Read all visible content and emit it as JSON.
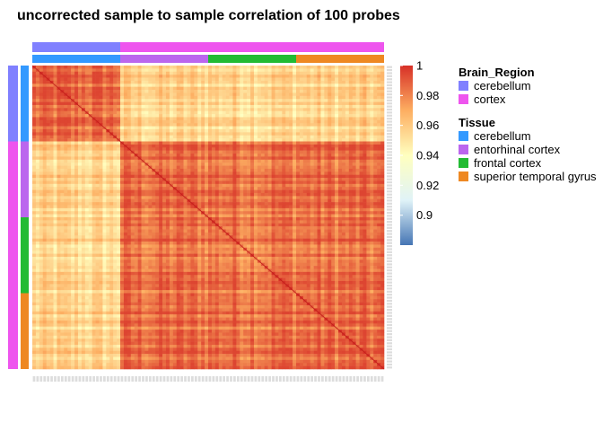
{
  "title": "uncorrected sample to sample correlation of 100 probes",
  "chart_data": {
    "type": "heatmap",
    "title": "uncorrected sample to sample correlation of 100 probes",
    "n_samples": 100,
    "colorbar": {
      "min": 0.88,
      "max": 1.0,
      "ticks": [
        {
          "value": 1.0,
          "label": "1"
        },
        {
          "value": 0.98,
          "label": "0.98"
        },
        {
          "value": 0.96,
          "label": "0.96"
        },
        {
          "value": 0.94,
          "label": "0.94"
        },
        {
          "value": 0.92,
          "label": "0.92"
        },
        {
          "value": 0.9,
          "label": "0.9"
        }
      ],
      "colors": [
        "#4575b4",
        "#e0f3f8",
        "#ffffbf",
        "#fdae61",
        "#d73027"
      ]
    },
    "annotations": [
      {
        "name": "Brain_Region",
        "levels": [
          {
            "label": "cerebellum",
            "color": "#8080ff"
          },
          {
            "label": "cortex",
            "color": "#ee55ee"
          }
        ],
        "counts": [
          25,
          75
        ]
      },
      {
        "name": "Tissue",
        "levels": [
          {
            "label": "cerebellum",
            "color": "#3399ff"
          },
          {
            "label": "entorhinal cortex",
            "color": "#bb66ee"
          },
          {
            "label": "frontal cortex",
            "color": "#22bb33"
          },
          {
            "label": "superior temporal gyrus",
            "color": "#ee8822"
          }
        ],
        "counts": [
          25,
          25,
          25,
          25
        ]
      }
    ],
    "block_correlation": {
      "within_cerebellum": 0.985,
      "within_cortex": 0.985,
      "between_cerebellum_cortex": 0.955,
      "diagonal": 1.0
    }
  }
}
